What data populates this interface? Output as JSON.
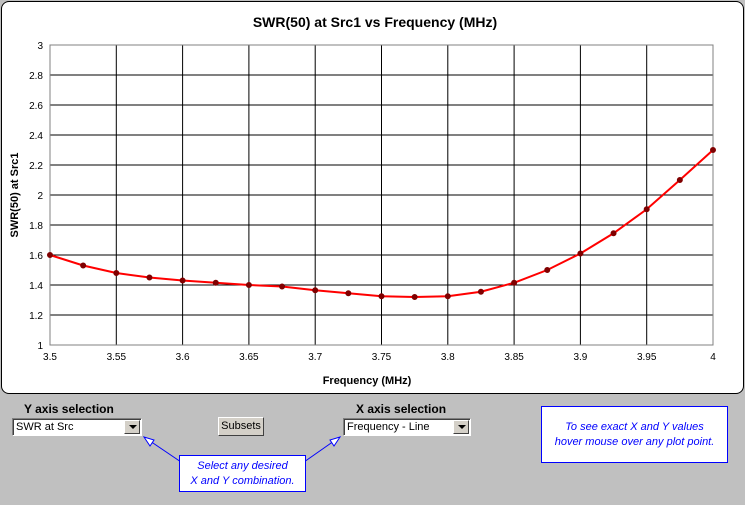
{
  "chart_data": {
    "type": "line",
    "title": "SWR(50) at Src1  vs  Frequency (MHz)",
    "xlabel": "Frequency (MHz)",
    "ylabel": "SWR(50) at Src1",
    "xlim": [
      3.5,
      4.0
    ],
    "ylim": [
      1,
      3
    ],
    "x_ticks": [
      "3.5",
      "3.55",
      "3.6",
      "3.65",
      "3.7",
      "3.75",
      "3.8",
      "3.85",
      "3.9",
      "3.95",
      "4"
    ],
    "y_ticks": [
      "1",
      "1.2",
      "1.4",
      "1.6",
      "1.8",
      "2",
      "2.2",
      "2.4",
      "2.6",
      "2.8",
      "3"
    ],
    "grid": true,
    "legend": "none",
    "line_color": "#ff0000",
    "marker_color": "#800000",
    "series": [
      {
        "x": [
          3.5,
          3.525,
          3.55,
          3.575,
          3.6,
          3.625,
          3.65,
          3.675,
          3.7,
          3.725,
          3.75,
          3.775,
          3.8,
          3.825,
          3.85,
          3.875,
          3.9,
          3.925,
          3.95,
          3.975,
          4.0
        ],
        "values": [
          1.6,
          1.53,
          1.48,
          1.45,
          1.43,
          1.415,
          1.4,
          1.39,
          1.365,
          1.345,
          1.325,
          1.32,
          1.325,
          1.355,
          1.415,
          1.5,
          1.61,
          1.745,
          1.905,
          2.1,
          2.3
        ]
      }
    ]
  },
  "controls": {
    "y_axis_label": "Y axis selection",
    "y_axis_value": "SWR at Src",
    "x_axis_label": "X axis selection",
    "x_axis_value": "Frequency - Line",
    "subsets_label": "Subsets",
    "hint_line1": "Select any desired",
    "hint_line2": "X and Y combination.",
    "info_line1": "To see exact X and Y values",
    "info_line2": "hover mouse over any plot point."
  },
  "colors": {
    "annotation": "#0000ff",
    "arrow_fill": "#ffffff"
  }
}
